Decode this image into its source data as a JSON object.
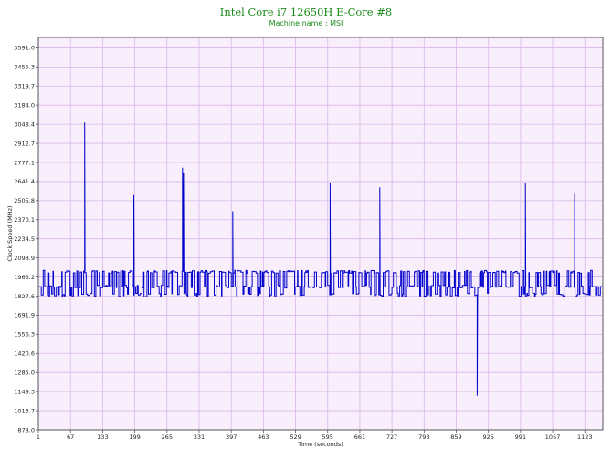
{
  "chart_data": {
    "type": "line",
    "title": "Intel Core i7 12650H E-Core #8",
    "subtitle": "Machine name : MSI",
    "xlabel": "Time (seconds)",
    "ylabel": "Clock Speed (MHz)",
    "xlim": [
      1,
      1160
    ],
    "ylim": [
      878.0,
      3665.0
    ],
    "x_ticks": [
      1,
      67,
      133,
      199,
      265,
      331,
      397,
      463,
      529,
      595,
      661,
      727,
      793,
      859,
      925,
      991,
      1057,
      1123
    ],
    "y_ticks": [
      "878.0",
      "1013.7",
      "1149.3",
      "1285.0",
      "1420.6",
      "1556.3",
      "1691.9",
      "1827.6",
      "1963.2",
      "2098.9",
      "2234.5",
      "2370.1",
      "2505.8",
      "2641.4",
      "2777.1",
      "2912.7",
      "3048.4",
      "3184.0",
      "3319.7",
      "3455.3",
      "3591.0"
    ],
    "grid": true,
    "baseline_mhz": 1895,
    "high_level_mhz": 2010,
    "low_level_mhz": 1835,
    "series": [
      {
        "color": "#0000cc",
        "spikes": [
          {
            "x": 96,
            "y": 3060
          },
          {
            "x": 197,
            "y": 2545
          },
          {
            "x": 297,
            "y": 2740
          },
          {
            "x": 299,
            "y": 2700
          },
          {
            "x": 400,
            "y": 2430
          },
          {
            "x": 600,
            "y": 2630
          },
          {
            "x": 702,
            "y": 2600
          },
          {
            "x": 902,
            "y": 1120
          },
          {
            "x": 1001,
            "y": 2630
          },
          {
            "x": 1102,
            "y": 2555
          }
        ]
      }
    ]
  }
}
